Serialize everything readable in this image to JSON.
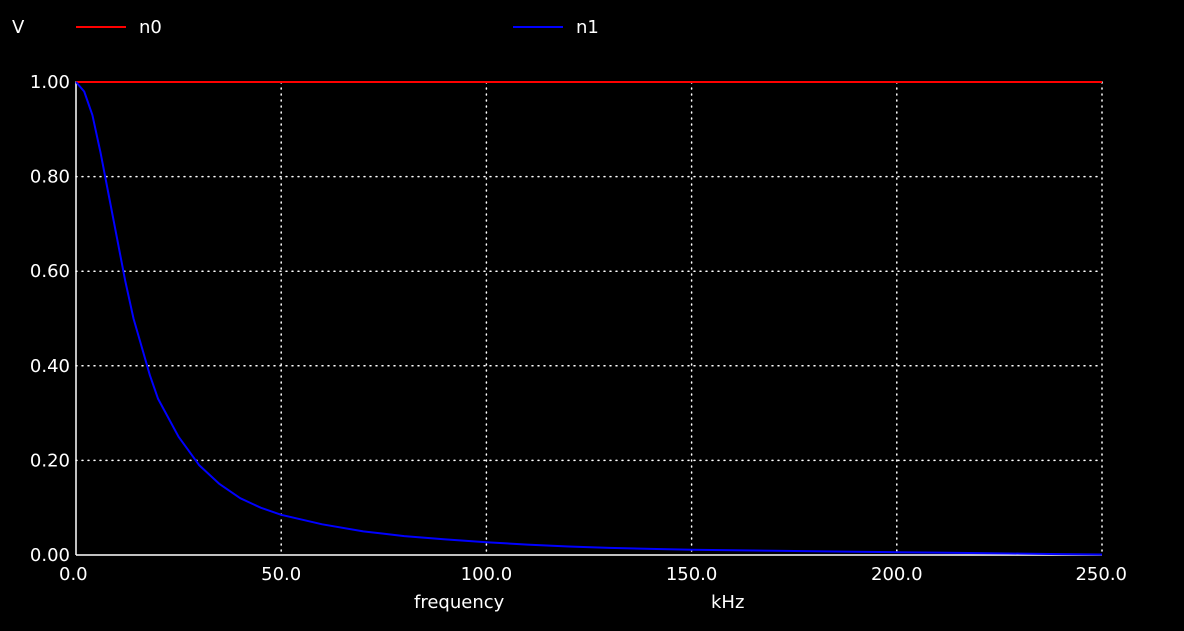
{
  "chart_data": {
    "type": "line",
    "ylabel": "V",
    "xlabel": "frequency",
    "xunit": "kHz",
    "xlim": [
      0,
      250
    ],
    "ylim": [
      0,
      1
    ],
    "grid": true,
    "legend_position": "top",
    "x_ticks": [
      "0.0",
      "50.0",
      "100.0",
      "150.0",
      "200.0",
      "250.0"
    ],
    "y_ticks": [
      "0.00",
      "0.20",
      "0.40",
      "0.60",
      "0.80",
      "1.00"
    ],
    "x": [
      0,
      2,
      4,
      6,
      8,
      10,
      12,
      14,
      16,
      18,
      20,
      25,
      30,
      35,
      40,
      45,
      50,
      60,
      70,
      80,
      90,
      100,
      110,
      120,
      130,
      140,
      150,
      160,
      170,
      180,
      190,
      200,
      210,
      220,
      230,
      240,
      250
    ],
    "series": [
      {
        "name": "n0",
        "color": "#ff0000",
        "values": [
          1,
          1,
          1,
          1,
          1,
          1,
          1,
          1,
          1,
          1,
          1,
          1,
          1,
          1,
          1,
          1,
          1,
          1,
          1,
          1,
          1,
          1,
          1,
          1,
          1,
          1,
          1,
          1,
          1,
          1,
          1,
          1,
          1,
          1,
          1,
          1,
          1
        ]
      },
      {
        "name": "n1",
        "color": "#0000ff",
        "values": [
          1.0,
          0.98,
          0.93,
          0.85,
          0.76,
          0.67,
          0.58,
          0.5,
          0.44,
          0.38,
          0.33,
          0.25,
          0.19,
          0.15,
          0.12,
          0.1,
          0.085,
          0.065,
          0.05,
          0.04,
          0.033,
          0.027,
          0.022,
          0.018,
          0.015,
          0.013,
          0.011,
          0.01,
          0.009,
          0.008,
          0.007,
          0.006,
          0.005,
          0.004,
          0.003,
          0.002,
          0.001
        ]
      }
    ]
  }
}
